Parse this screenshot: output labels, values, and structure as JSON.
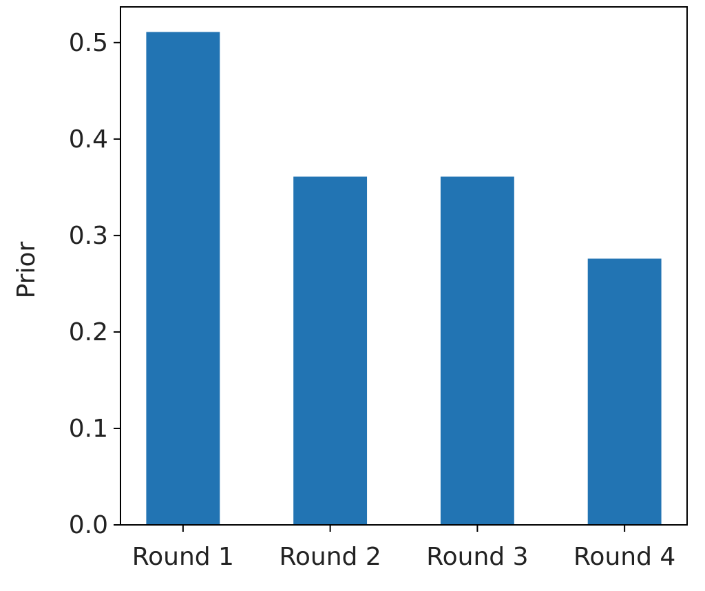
{
  "chart_data": {
    "type": "bar",
    "ylabel": "Prior",
    "categories": [
      "Round 1",
      "Round 2",
      "Round 3",
      "Round 4"
    ],
    "values": [
      0.511,
      0.361,
      0.361,
      0.276
    ],
    "color": "#2274b3",
    "ylim": [
      0,
      0.537
    ],
    "yticks": [
      {
        "value": 0,
        "label": "0.0"
      },
      0.1,
      0.2,
      0.3,
      0.4,
      0.5
    ],
    "grid": false
  }
}
